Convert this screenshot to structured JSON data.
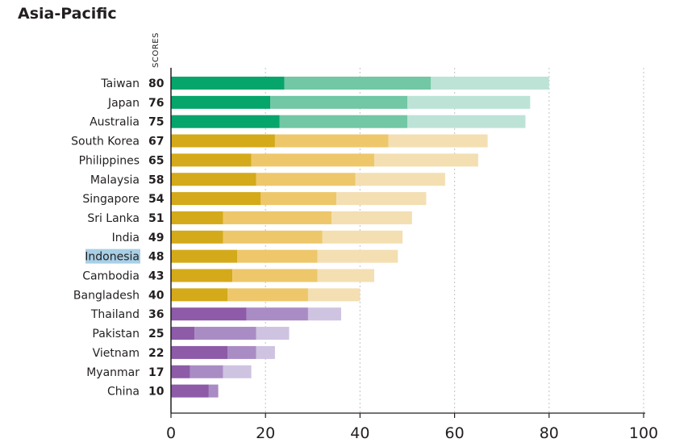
{
  "title": "Asia-Pacific",
  "chart_data": {
    "type": "bar",
    "orientation": "horizontal",
    "stacked": true,
    "title": "Asia-Pacific",
    "score_header": "SCORES",
    "xlim": [
      0,
      100
    ],
    "x_ticks": [
      "0",
      "20",
      "40",
      "60",
      "80",
      "100"
    ],
    "grid": "vertical dotted",
    "highlighted_category": "Indonesia",
    "categories": [
      "Taiwan",
      "Japan",
      "Australia",
      "South Korea",
      "Philippines",
      "Malaysia",
      "Singapore",
      "Sri Lanka",
      "India",
      "Indonesia",
      "Cambodia",
      "Bangladesh",
      "Thailand",
      "Pakistan",
      "Vietnam",
      "Myanmar",
      "China"
    ],
    "scores": [
      80,
      76,
      75,
      67,
      65,
      58,
      54,
      51,
      49,
      48,
      43,
      40,
      36,
      25,
      22,
      17,
      10
    ],
    "groups": [
      0,
      0,
      0,
      1,
      1,
      1,
      1,
      1,
      1,
      1,
      1,
      1,
      2,
      2,
      2,
      2,
      2
    ],
    "segments": [
      [
        24,
        31,
        25
      ],
      [
        21,
        29,
        26
      ],
      [
        23,
        27,
        25
      ],
      [
        22,
        24,
        21
      ],
      [
        17,
        26,
        22
      ],
      [
        18,
        21,
        19
      ],
      [
        19,
        16,
        19
      ],
      [
        11,
        23,
        17
      ],
      [
        11,
        21,
        17
      ],
      [
        14,
        17,
        17
      ],
      [
        13,
        18,
        12
      ],
      [
        12,
        17,
        11
      ],
      [
        16,
        13,
        7
      ],
      [
        5,
        13,
        7
      ],
      [
        12,
        6,
        4
      ],
      [
        4,
        7,
        6
      ],
      [
        8,
        2,
        0
      ]
    ],
    "colors": [
      [
        "#06a56b",
        "#72c7a5",
        "#bde3d7"
      ],
      [
        "#d4aa1a",
        "#edc76a",
        "#f3dfb1"
      ],
      [
        "#8d5ba8",
        "#a98cc4",
        "#cfc3e2"
      ]
    ],
    "highlight_color": "#a8cfe6",
    "grid_color": "#c9ccd0",
    "axis_color": "#231f20"
  }
}
